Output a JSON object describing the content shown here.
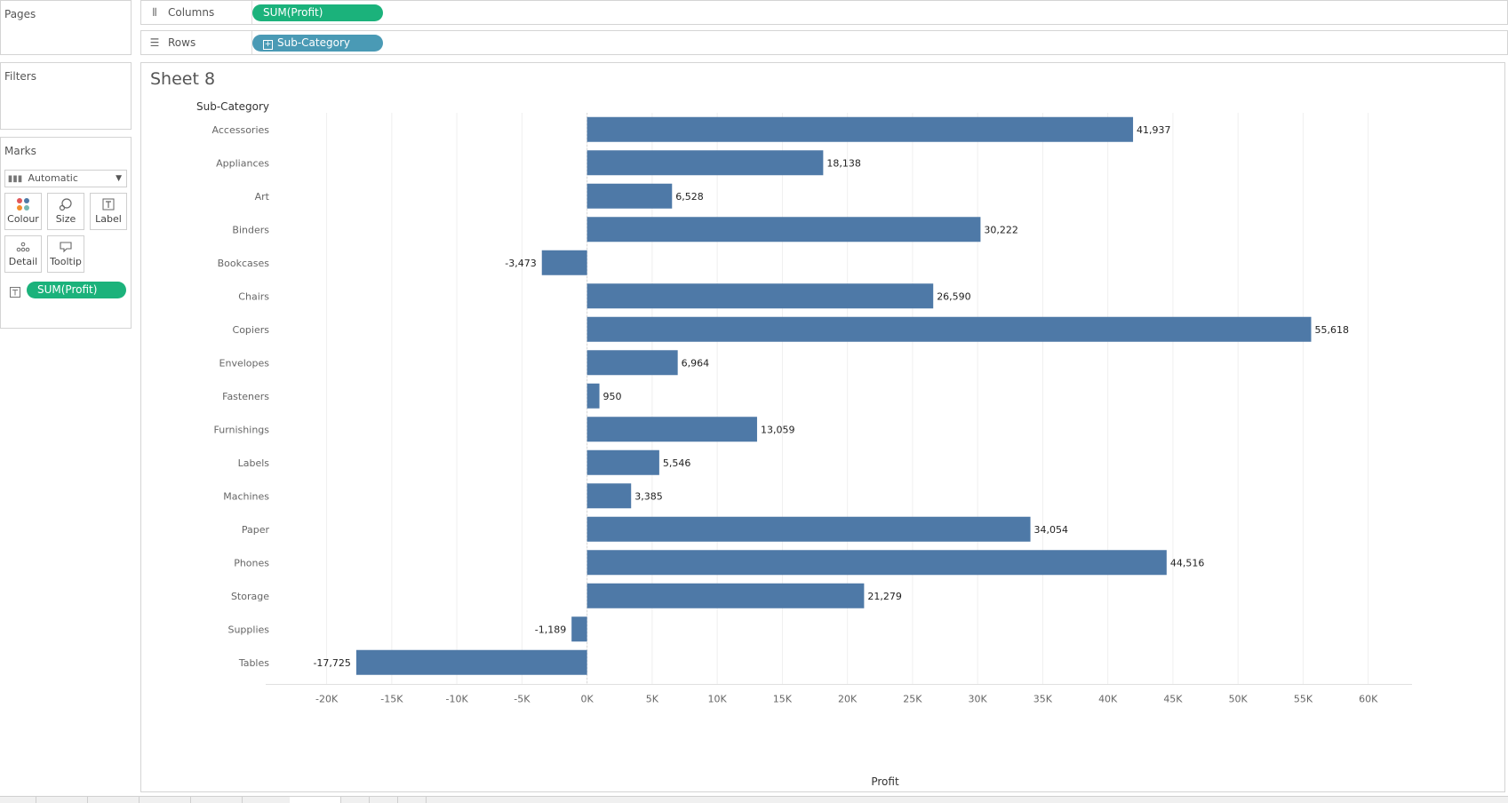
{
  "left_panel": {
    "pages_title": "Pages",
    "filters_title": "Filters",
    "marks_title": "Marks",
    "mark_type": "Automatic",
    "buttons": [
      {
        "label": "Colour",
        "icon": "colour-dots-icon"
      },
      {
        "label": "Size",
        "icon": "size-icon"
      },
      {
        "label": "Label",
        "icon": "label-icon"
      },
      {
        "label": "Detail",
        "icon": "detail-icon"
      },
      {
        "label": "Tooltip",
        "icon": "tooltip-icon"
      }
    ],
    "marks_pill": "SUM(Profit)"
  },
  "shelves": {
    "columns_label": "Columns",
    "columns_pill": "SUM(Profit)",
    "rows_label": "Rows",
    "rows_pill": "Sub-Category"
  },
  "sheet": {
    "title": "Sheet 8"
  },
  "colors": {
    "bar": "#4e79a7",
    "pill_green": "#1bb27b",
    "pill_blue": "#4a9ab5"
  },
  "chart_data": {
    "type": "bar",
    "orientation": "horizontal",
    "title": "Sheet 8",
    "ylabel": "Sub-Category",
    "xlabel": "Profit",
    "categories": [
      "Accessories",
      "Appliances",
      "Art",
      "Binders",
      "Bookcases",
      "Chairs",
      "Copiers",
      "Envelopes",
      "Fasteners",
      "Furnishings",
      "Labels",
      "Machines",
      "Paper",
      "Phones",
      "Storage",
      "Supplies",
      "Tables"
    ],
    "values": [
      41937,
      18138,
      6528,
      30222,
      -3473,
      26590,
      55618,
      6964,
      950,
      13059,
      5546,
      3385,
      34054,
      44516,
      21279,
      -1189,
      -17725
    ],
    "value_labels": [
      "41,937",
      "18,138",
      "6,528",
      "30,222",
      "-3,473",
      "26,590",
      "55,618",
      "6,964",
      "950",
      "13,059",
      "5,546",
      "3,385",
      "34,054",
      "44,516",
      "21,279",
      "-1,189",
      "-17,725"
    ],
    "xlim": [
      -24000,
      62000
    ],
    "x_ticks": [
      -20000,
      -15000,
      -10000,
      -5000,
      0,
      5000,
      10000,
      15000,
      20000,
      25000,
      30000,
      35000,
      40000,
      45000,
      50000,
      55000,
      60000
    ],
    "x_tick_labels": [
      "-20K",
      "-15K",
      "-10K",
      "-5K",
      "0K",
      "5K",
      "10K",
      "15K",
      "20K",
      "25K",
      "30K",
      "35K",
      "40K",
      "45K",
      "50K",
      "55K",
      "60K"
    ],
    "grid": true
  }
}
